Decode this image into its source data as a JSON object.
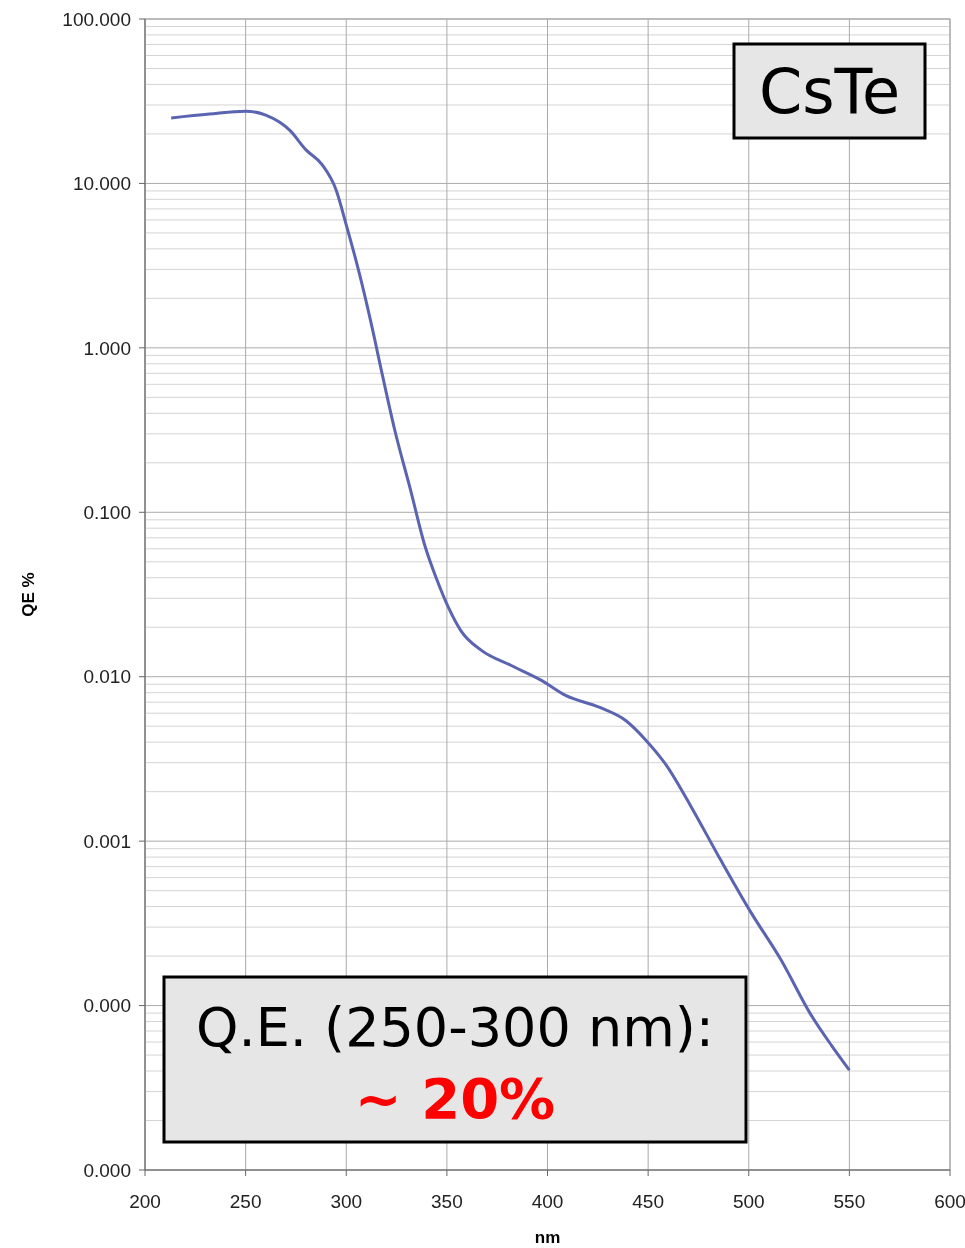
{
  "chart_data": {
    "type": "line",
    "xlabel": "nm",
    "ylabel": "QE %",
    "log": "y",
    "grid": true,
    "marker": "none",
    "line_style": "solid",
    "xlim": [
      200,
      600
    ],
    "xticks": [
      200,
      250,
      300,
      350,
      400,
      450,
      500,
      550,
      600
    ],
    "ylim": [
      1e-05,
      100
    ],
    "yticks": [
      {
        "value": 100,
        "label": "100.000"
      },
      {
        "value": 10,
        "label": "10.000"
      },
      {
        "value": 1,
        "label": "1.000"
      },
      {
        "value": 0.1,
        "label": "0.100"
      },
      {
        "value": 0.01,
        "label": "0.010"
      },
      {
        "value": 0.001,
        "label": "0.001"
      },
      {
        "value": 0.0001,
        "label": "0.000"
      },
      {
        "value": 1e-05,
        "label": "0.000"
      }
    ],
    "x": [
      213,
      232,
      250,
      260,
      272,
      280,
      288,
      295,
      300,
      306,
      312,
      318,
      324,
      332,
      339,
      345,
      351,
      357,
      367,
      382,
      397,
      409,
      426,
      439,
      449,
      459,
      471,
      486,
      501,
      516,
      531,
      541,
      550
    ],
    "series": [
      {
        "color": "#5a64b0",
        "values": [
          25,
          26.4,
          27.5,
          26,
          21,
          16,
          13,
          9.1,
          5.6,
          3.0,
          1.48,
          0.68,
          0.32,
          0.136,
          0.063,
          0.039,
          0.026,
          0.019,
          0.0145,
          0.0117,
          0.0095,
          0.0077,
          0.0065,
          0.0054,
          0.0041,
          0.0029,
          0.00165,
          0.00077,
          0.00037,
          0.00019,
          8.75e-05,
          5.75e-05,
          4.05e-05
        ]
      }
    ],
    "annotations": [
      "CsTe",
      "Q.E. (250-300 nm):",
      "~ 20%"
    ]
  }
}
